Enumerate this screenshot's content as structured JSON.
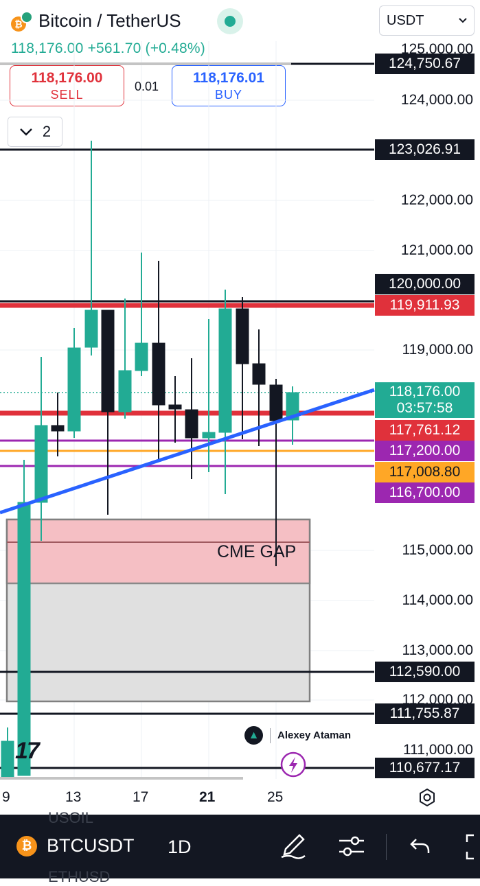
{
  "header": {
    "title": "Bitcoin / TetherUS",
    "coin_symbol": "₿",
    "price_line": "118,176.00 +561.70 (+0.48%)",
    "currency": "USDT"
  },
  "trade": {
    "sell_price": "118,176.00",
    "sell_label": "SELL",
    "spread": "0.01",
    "buy_price": "118,176.01",
    "buy_label": "BUY"
  },
  "indicators_toggle": {
    "count": "2"
  },
  "axis": {
    "ticks": [
      "125,000.00",
      "124,000.00",
      "122,000.00",
      "121,000.00",
      "119,000.00",
      "115,000.00",
      "114,000.00",
      "113,000.00",
      "112,000.00",
      "111,000.00"
    ],
    "tag_124750": "124,750.67",
    "tag_123026": "123,026.91",
    "tag_120000": "120,000.00",
    "tag_119911": "119,911.93",
    "tag_last_price": "118,176.00",
    "tag_countdown": "03:57:58",
    "tag_117761": "117,761.12",
    "tag_117200": "117,200.00",
    "tag_117008": "117,008.80",
    "tag_116700": "116,700.00",
    "tag_112590": "112,590.00",
    "tag_111755": "111,755.87",
    "tag_110677": "110,677.17"
  },
  "chart": {
    "annotation": "CME GAP",
    "watermark_name": "Alexey Ataman",
    "tv_logo": "17"
  },
  "dates": [
    "9",
    "13",
    "17",
    "21",
    "25"
  ],
  "bottom_bar": {
    "symbol": "BTCUSDT",
    "interval": "1D",
    "ghost_above": "USOIL",
    "ghost_below": "ETHUSD"
  },
  "colors": {
    "up": "#22ab94",
    "down": "#131722",
    "resistance": "#e0313b",
    "trendline": "#2962ff",
    "purple": "#9c27b0",
    "orange": "#ffa726"
  }
}
